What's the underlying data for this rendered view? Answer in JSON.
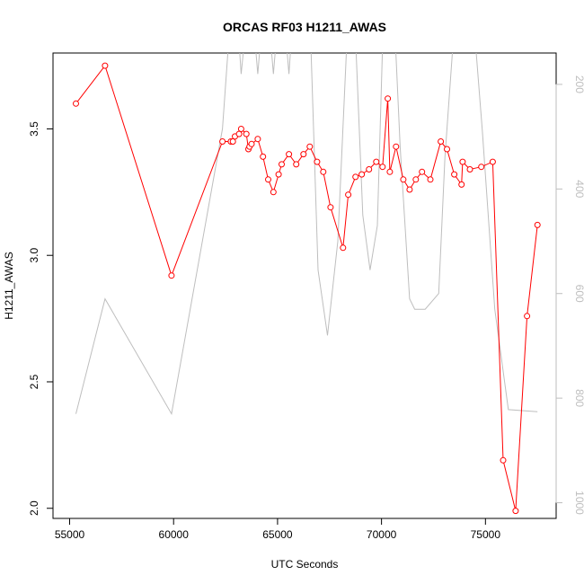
{
  "chart_data": {
    "type": "line",
    "title": "ORCAS RF03 H1211_AWAS",
    "xlabel": "UTC Seconds",
    "ylabel": "H1211_AWAS",
    "xlim": [
      54200,
      78400
    ],
    "ylim": [
      1.96,
      3.8
    ],
    "y2lim": [
      1030,
      140
    ],
    "y2_reversed": true,
    "xticks": [
      55000,
      60000,
      65000,
      70000,
      75000
    ],
    "yticks": [
      2.0,
      2.5,
      3.0,
      3.5
    ],
    "y2ticks": [
      200,
      400,
      600,
      800,
      1000
    ],
    "grid": false,
    "series": [
      {
        "axis": "left",
        "color": "#ff0000",
        "markers": "open-circle",
        "x": [
          55300,
          56700,
          59900,
          62350,
          62750,
          62850,
          62950,
          63150,
          63250,
          63500,
          63600,
          63650,
          63750,
          64050,
          64300,
          64550,
          64800,
          65050,
          65200,
          65550,
          65900,
          66250,
          66550,
          66900,
          67200,
          67550,
          68150,
          68400,
          68750,
          69050,
          69400,
          69750,
          70050,
          70300,
          70400,
          70700,
          71050,
          71350,
          71650,
          71950,
          72350,
          72850,
          73150,
          73500,
          73850,
          73900,
          74250,
          74800,
          75350,
          75850,
          76450,
          77000,
          77500
        ],
        "y": [
          3.6,
          3.75,
          2.92,
          3.45,
          3.45,
          3.45,
          3.47,
          3.48,
          3.5,
          3.48,
          3.42,
          3.43,
          3.44,
          3.46,
          3.39,
          3.3,
          3.25,
          3.32,
          3.36,
          3.4,
          3.36,
          3.4,
          3.43,
          3.37,
          3.33,
          3.19,
          3.03,
          3.24,
          3.31,
          3.32,
          3.34,
          3.37,
          3.35,
          3.62,
          3.33,
          3.43,
          3.3,
          3.26,
          3.3,
          3.33,
          3.3,
          3.45,
          3.42,
          3.32,
          3.28,
          3.37,
          3.34,
          3.35,
          3.37,
          2.19,
          1.99,
          2.76,
          3.12
        ]
      },
      {
        "axis": "right",
        "color": "#bebebe",
        "markers": "none",
        "x": [
          55300,
          56700,
          59900,
          62350,
          62750,
          63050,
          63250,
          63550,
          63800,
          64050,
          64300,
          64550,
          64800,
          65050,
          65300,
          65550,
          65750,
          66000,
          66550,
          66950,
          67400,
          67900,
          68400,
          68700,
          69100,
          69450,
          69800,
          70100,
          70350,
          70600,
          70900,
          71100,
          71350,
          71600,
          72100,
          72750,
          73050,
          73550,
          74050,
          74400,
          74850,
          75450,
          76100,
          77500
        ],
        "y": [
          830,
          610,
          830,
          285,
          60,
          60,
          180,
          60,
          60,
          180,
          60,
          60,
          180,
          60,
          60,
          180,
          60,
          60,
          60,
          555,
          680,
          500,
          60,
          60,
          450,
          555,
          470,
          60,
          60,
          60,
          320,
          450,
          610,
          630,
          630,
          600,
          340,
          60,
          60,
          60,
          290,
          630,
          822,
          826
        ]
      }
    ]
  }
}
